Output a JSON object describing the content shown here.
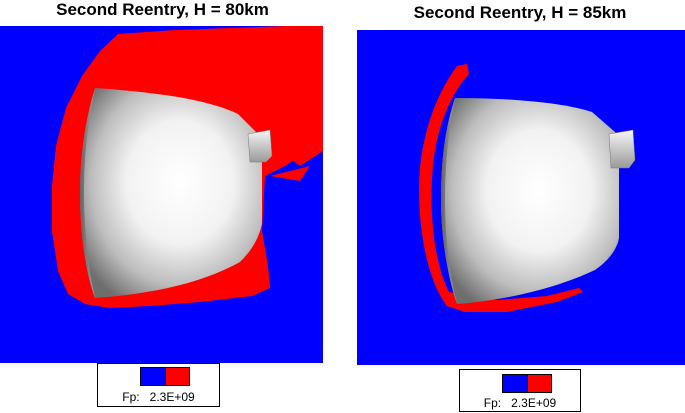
{
  "left": {
    "title": "Second Reentry, H = 80km",
    "legend": {
      "variable": "Fp:",
      "value": "2.3E+09"
    }
  },
  "right": {
    "title": "Second Reentry, H = 85km",
    "legend": {
      "variable": "Fp:",
      "value": "2.3E+09"
    }
  },
  "colors": {
    "background_field": "#0000ff",
    "region_above_threshold": "#ff0000",
    "capsule": "grey-gradient"
  }
}
